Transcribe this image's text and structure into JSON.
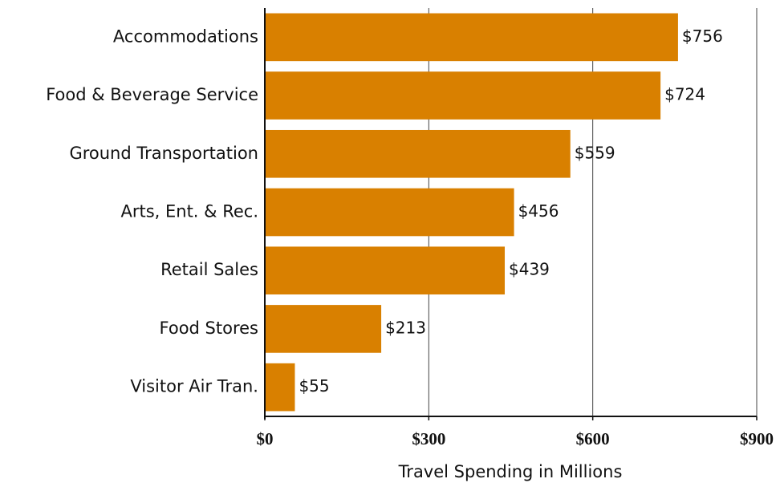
{
  "chart_data": {
    "type": "bar",
    "orientation": "horizontal",
    "x_label": "Travel Spending in Millions",
    "categories": [
      "Accommodations",
      "Food & Beverage Service",
      "Ground Transportation",
      "Arts, Ent. & Rec.",
      "Retail Sales",
      "Food Stores",
      "Visitor Air Tran."
    ],
    "values": [
      756,
      724,
      559,
      456,
      439,
      213,
      55
    ],
    "value_labels": [
      "$756",
      "$724",
      "$559",
      "$456",
      "$439",
      "$213",
      "$55"
    ],
    "color": "#d98000",
    "xlim": [
      0,
      900
    ],
    "xticks": [
      {
        "value": 0,
        "label": "$0"
      },
      {
        "value": 300,
        "label": "$300"
      },
      {
        "value": 600,
        "label": "$600"
      },
      {
        "value": 900,
        "label": "$900"
      }
    ],
    "grid": true
  }
}
